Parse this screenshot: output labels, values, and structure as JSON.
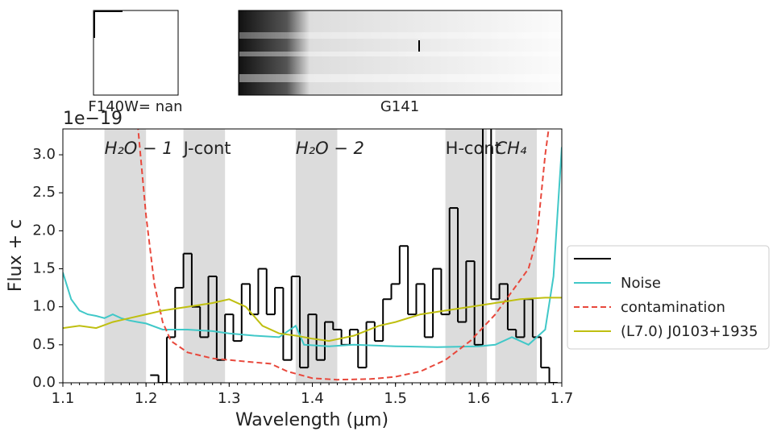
{
  "chart_data": {
    "type": "line",
    "panel_labels": [
      "F140W= nan",
      "G141"
    ],
    "y_offset_label": "1e−19",
    "xlabel": "Wavelength (μm)",
    "ylabel": "Flux + c",
    "xlim": [
      1.1,
      1.7
    ],
    "ylim": [
      0,
      3.34
    ],
    "xticks": [
      1.1,
      1.2,
      1.3,
      1.4,
      1.5,
      1.6,
      1.7
    ],
    "yticks": [
      {
        "value": 0,
        "label": "0.0"
      },
      0.5,
      {
        "value": 1,
        "label": "1.0"
      },
      1.5,
      {
        "value": 2,
        "label": "2.0"
      },
      2.5,
      {
        "value": 3,
        "label": "3.0"
      }
    ],
    "legend": "right",
    "bands": [
      {
        "label": "H₂O − 1",
        "range": [
          1.15,
          1.2
        ]
      },
      {
        "label": "J-cont",
        "range": [
          1.245,
          1.295
        ]
      },
      {
        "label": "H₂O − 2",
        "range": [
          1.38,
          1.43
        ]
      },
      {
        "label": "H-cont",
        "range": [
          1.56,
          1.61
        ]
      },
      {
        "label": "CH₄",
        "range": [
          1.62,
          1.67
        ]
      }
    ],
    "series": [
      {
        "color": "#000000",
        "style": "step",
        "x": [
          1.21,
          1.22,
          1.23,
          1.24,
          1.25,
          1.26,
          1.27,
          1.28,
          1.29,
          1.3,
          1.31,
          1.32,
          1.33,
          1.34,
          1.35,
          1.36,
          1.37,
          1.38,
          1.39,
          1.4,
          1.41,
          1.42,
          1.43,
          1.44,
          1.45,
          1.46,
          1.47,
          1.48,
          1.49,
          1.5,
          1.51,
          1.52,
          1.53,
          1.54,
          1.55,
          1.56,
          1.57,
          1.58,
          1.59,
          1.6,
          1.61,
          1.62,
          1.63,
          1.64,
          1.65,
          1.66,
          1.67,
          1.68,
          1.69
        ],
        "values": [
          0.1,
          0.0,
          0.6,
          1.25,
          1.7,
          1.0,
          0.6,
          1.4,
          0.3,
          0.9,
          0.55,
          1.3,
          0.9,
          1.5,
          0.9,
          1.25,
          0.3,
          1.4,
          0.2,
          0.9,
          0.3,
          0.8,
          0.7,
          0.5,
          0.7,
          0.2,
          0.8,
          0.55,
          1.1,
          1.3,
          1.8,
          0.9,
          1.3,
          0.6,
          1.5,
          0.9,
          2.3,
          0.8,
          1.6,
          0.5,
          3.4,
          1.1,
          1.3,
          0.7,
          0.6,
          1.1,
          0.6,
          0.2,
          0.0
        ]
      },
      {
        "name": "Noise",
        "color": "#40c8c8",
        "style": "solid",
        "x": [
          1.1,
          1.11,
          1.12,
          1.13,
          1.14,
          1.15,
          1.16,
          1.17,
          1.18,
          1.19,
          1.2,
          1.22,
          1.25,
          1.28,
          1.3,
          1.33,
          1.36,
          1.38,
          1.39,
          1.42,
          1.45,
          1.5,
          1.55,
          1.6,
          1.62,
          1.64,
          1.66,
          1.68,
          1.69,
          1.7
        ],
        "values": [
          1.45,
          1.1,
          0.95,
          0.9,
          0.88,
          0.85,
          0.9,
          0.85,
          0.82,
          0.8,
          0.78,
          0.7,
          0.7,
          0.68,
          0.65,
          0.62,
          0.6,
          0.75,
          0.5,
          0.48,
          0.5,
          0.48,
          0.47,
          0.48,
          0.5,
          0.6,
          0.5,
          0.7,
          1.4,
          3.1
        ]
      },
      {
        "name": "contamination",
        "color": "#e8483c",
        "style": "dashed",
        "x": [
          1.19,
          1.2,
          1.21,
          1.22,
          1.23,
          1.25,
          1.28,
          1.32,
          1.35,
          1.37,
          1.4,
          1.43,
          1.47,
          1.5,
          1.53,
          1.56,
          1.59,
          1.62,
          1.64,
          1.66,
          1.67,
          1.68,
          1.685
        ],
        "values": [
          3.4,
          2.2,
          1.3,
          0.8,
          0.55,
          0.4,
          0.32,
          0.28,
          0.25,
          0.15,
          0.06,
          0.04,
          0.05,
          0.08,
          0.15,
          0.3,
          0.55,
          0.9,
          1.2,
          1.5,
          1.9,
          3.0,
          3.4
        ]
      },
      {
        "name": "(L7.0) J0103+1935",
        "color": "#bfbf10",
        "style": "solid",
        "x": [
          1.1,
          1.12,
          1.14,
          1.16,
          1.18,
          1.2,
          1.22,
          1.25,
          1.28,
          1.3,
          1.32,
          1.34,
          1.36,
          1.38,
          1.4,
          1.42,
          1.45,
          1.48,
          1.5,
          1.53,
          1.56,
          1.59,
          1.62,
          1.65,
          1.68,
          1.7
        ],
        "values": [
          0.72,
          0.75,
          0.72,
          0.8,
          0.85,
          0.9,
          0.95,
          1.0,
          1.05,
          1.1,
          1.0,
          0.75,
          0.65,
          0.62,
          0.58,
          0.55,
          0.62,
          0.75,
          0.8,
          0.9,
          0.95,
          1.0,
          1.05,
          1.1,
          1.12,
          1.12
        ]
      }
    ]
  }
}
